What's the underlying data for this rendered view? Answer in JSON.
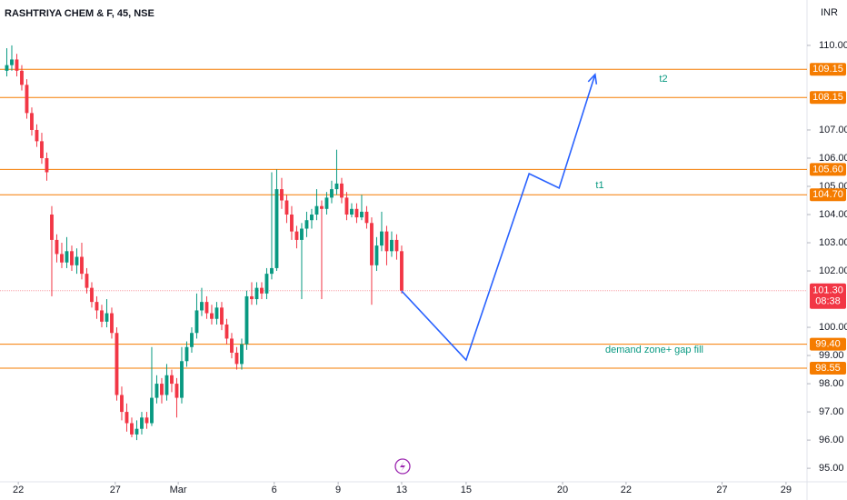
{
  "chart_data": {
    "type": "candlestick",
    "title": "RASHTRIYA CHEM & F, 45, NSE",
    "currency": "INR",
    "up_color": "#089981",
    "down_color": "#f23645",
    "open": [
      109.1,
      109.3,
      109.5,
      109.1,
      108.6,
      107.6,
      107.0,
      106.6,
      106.0,
      104.0,
      103.1,
      102.6,
      102.3,
      102.7,
      102.2,
      102.5,
      101.9,
      101.4,
      100.9,
      100.6,
      100.2,
      100.5,
      99.8,
      97.6,
      97.0,
      96.6,
      96.2,
      96.4,
      96.8,
      96.6,
      97.5,
      98.0,
      97.6,
      98.3,
      98.0,
      97.5,
      98.8,
      99.3,
      99.8,
      100.6,
      100.9,
      100.5,
      100.3,
      100.7,
      100.1,
      99.6,
      99.1,
      98.7,
      99.4,
      101.1,
      101.0,
      101.4,
      101.2,
      101.9,
      102.1,
      104.9,
      104.5,
      104.0,
      103.4,
      103.1,
      103.5,
      103.8,
      104.0,
      104.3,
      104.2,
      104.6,
      104.9,
      105.1,
      104.6,
      104.0,
      104.2,
      103.9,
      104.1,
      103.7,
      102.2,
      102.9,
      103.4,
      102.7,
      103.1,
      102.7
    ],
    "high": [
      109.9,
      110.0,
      109.7,
      109.3,
      108.8,
      107.8,
      107.2,
      106.9,
      106.2,
      104.3,
      103.3,
      103.0,
      103.2,
      102.9,
      102.8,
      103.0,
      102.1,
      101.6,
      101.1,
      100.8,
      101.0,
      100.7,
      100.0,
      97.9,
      97.3,
      96.8,
      96.7,
      97.0,
      97.0,
      99.3,
      98.3,
      98.2,
      98.7,
      98.5,
      98.2,
      99.3,
      99.5,
      100.0,
      101.2,
      101.4,
      101.1,
      100.8,
      100.9,
      100.9,
      100.3,
      99.8,
      99.3,
      99.6,
      101.3,
      101.6,
      101.6,
      101.6,
      102.1,
      105.5,
      105.6,
      105.3,
      104.7,
      104.3,
      103.6,
      103.7,
      104.1,
      104.2,
      104.9,
      104.5,
      104.8,
      105.2,
      106.3,
      105.3,
      104.8,
      104.4,
      104.4,
      104.7,
      104.3,
      103.9,
      103.2,
      104.1,
      103.6,
      103.4,
      103.3,
      102.9
    ],
    "low": [
      108.9,
      109.1,
      108.9,
      108.4,
      107.4,
      106.8,
      106.4,
      105.8,
      105.2,
      101.1,
      102.3,
      102.1,
      102.1,
      102.0,
      101.9,
      101.7,
      101.2,
      100.7,
      100.3,
      100.0,
      100.0,
      99.6,
      97.4,
      96.7,
      96.3,
      96.1,
      96.0,
      96.2,
      96.4,
      96.5,
      97.3,
      97.3,
      97.4,
      97.7,
      96.8,
      97.3,
      98.6,
      99.1,
      99.6,
      100.4,
      100.3,
      100.1,
      100.1,
      99.9,
      99.4,
      98.9,
      98.5,
      98.5,
      99.2,
      100.8,
      100.8,
      101.0,
      101.0,
      101.7,
      102.0,
      104.2,
      103.7,
      103.1,
      102.8,
      101.0,
      103.2,
      103.5,
      103.8,
      101.0,
      104.0,
      104.4,
      104.7,
      104.4,
      103.8,
      103.9,
      103.7,
      103.8,
      103.5,
      100.8,
      102.0,
      102.7,
      102.2,
      102.5,
      102.4,
      101.2
    ],
    "close": [
      109.3,
      109.5,
      109.1,
      108.6,
      107.6,
      107.0,
      106.6,
      106.0,
      105.5,
      103.1,
      102.6,
      102.3,
      102.7,
      102.2,
      102.5,
      101.9,
      101.4,
      100.9,
      100.6,
      100.2,
      100.5,
      99.8,
      97.6,
      97.0,
      96.6,
      96.2,
      96.4,
      96.8,
      96.6,
      97.5,
      98.0,
      97.6,
      98.3,
      98.0,
      97.5,
      98.8,
      99.3,
      99.8,
      100.6,
      100.9,
      100.5,
      100.3,
      100.7,
      100.1,
      99.6,
      99.1,
      98.7,
      99.4,
      101.1,
      101.0,
      101.4,
      101.2,
      101.9,
      102.1,
      104.9,
      104.5,
      104.0,
      103.4,
      103.1,
      103.5,
      103.8,
      104.0,
      104.3,
      104.2,
      104.6,
      104.9,
      105.1,
      104.6,
      104.0,
      104.2,
      103.9,
      104.1,
      103.7,
      102.2,
      102.9,
      103.4,
      102.7,
      103.1,
      102.7,
      101.3
    ],
    "ylim": [
      94.52,
      111.61
    ],
    "yticks": [
      {
        "value": 95,
        "label": "95.00"
      },
      {
        "value": 96,
        "label": "96.00"
      },
      {
        "value": 97,
        "label": "97.00"
      },
      {
        "value": 98,
        "label": "98.00"
      },
      {
        "value": 99,
        "label": "99.00"
      },
      {
        "value": 100,
        "label": "100.00"
      },
      {
        "value": 102,
        "label": "102.00"
      },
      {
        "value": 103,
        "label": "103.00"
      },
      {
        "value": 104,
        "label": "104.00"
      },
      {
        "value": 105,
        "label": "105.00"
      },
      {
        "value": 106,
        "label": "106.00"
      },
      {
        "value": 107,
        "label": "107.00"
      },
      {
        "value": 110,
        "label": "110.00"
      }
    ],
    "xlim": [
      -1.36,
      160.1
    ],
    "xticks": [
      {
        "value": 2.3,
        "label": "22"
      },
      {
        "value": 21.7,
        "label": "27"
      },
      {
        "value": 34.3,
        "label": "Mar"
      },
      {
        "value": 53.5,
        "label": "6"
      },
      {
        "value": 66.3,
        "label": "9"
      },
      {
        "value": 79,
        "label": "13"
      },
      {
        "value": 91.9,
        "label": "15"
      },
      {
        "value": 111.2,
        "label": "20"
      },
      {
        "value": 123.9,
        "label": "22"
      },
      {
        "value": 143.1,
        "label": "27"
      },
      {
        "value": 155.9,
        "label": "29"
      }
    ],
    "level_color": "#f57c00",
    "levels": [
      {
        "value": 109.15,
        "label": "109.15"
      },
      {
        "value": 108.15,
        "label": "108.15"
      },
      {
        "value": 105.6,
        "label": "105.60"
      },
      {
        "value": 104.7,
        "label": "104.70"
      },
      {
        "value": 99.4,
        "label": "99.40"
      },
      {
        "value": 98.55,
        "label": "98.55"
      }
    ],
    "current": {
      "value": 101.3,
      "label": "101.30",
      "countdown": "08:38"
    },
    "projection": {
      "color": "#2962ff",
      "x": [
        79,
        91.9,
        104.5,
        110.5,
        117.7
      ],
      "y": [
        101.29,
        98.84,
        105.45,
        104.94,
        108.97
      ]
    },
    "annotation_color": "#089981",
    "annotations": [
      "t2",
      "t1",
      "demand zone+ gap fill"
    ]
  }
}
